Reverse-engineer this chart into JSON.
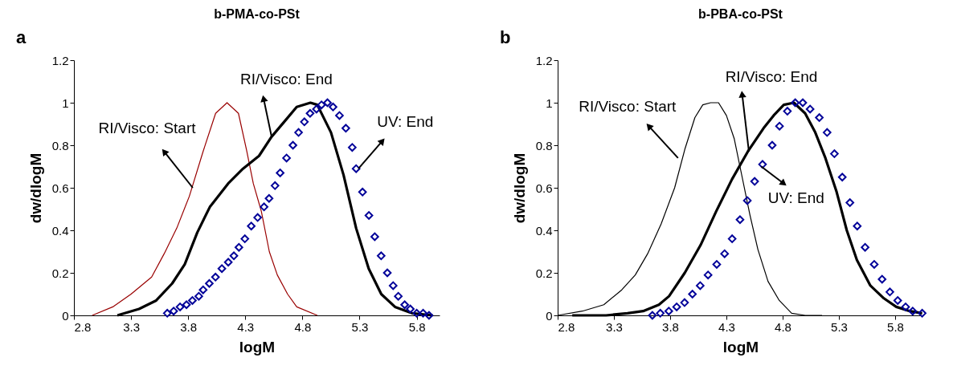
{
  "chart_data": [
    {
      "type": "line",
      "title": "b-PMA-co-PSt",
      "xlabel": "logM",
      "ylabel": "dw/dlogM",
      "xlim": [
        2.8,
        6.0
      ],
      "ylim": [
        0,
        1.2
      ],
      "xticks": [
        2.8,
        3.3,
        3.8,
        4.3,
        4.8,
        5.3,
        5.8
      ],
      "yticks": [
        0,
        0.2,
        0.4,
        0.6,
        0.8,
        1,
        1.2
      ],
      "grid": false,
      "series": [
        {
          "color": "#990000",
          "x": [
            2.96,
            3.14,
            3.3,
            3.48,
            3.59,
            3.7,
            3.81,
            3.93,
            4.04,
            4.14,
            4.24,
            4.31,
            4.37,
            4.44,
            4.51,
            4.58,
            4.67,
            4.75,
            4.93
          ],
          "values": [
            0,
            0.04,
            0.1,
            0.18,
            0.29,
            0.41,
            0.56,
            0.77,
            0.95,
            1.0,
            0.95,
            0.78,
            0.62,
            0.49,
            0.3,
            0.19,
            0.1,
            0.04,
            0
          ]
        },
        {
          "color": "#000000",
          "x": [
            3.18,
            3.37,
            3.52,
            3.66,
            3.77,
            3.88,
            3.99,
            4.15,
            4.28,
            4.42,
            4.53,
            4.64,
            4.75,
            4.87,
            4.93,
            5.05,
            5.16,
            5.27,
            5.38,
            5.49,
            5.61,
            5.76,
            5.94
          ],
          "values": [
            0,
            0.03,
            0.07,
            0.15,
            0.24,
            0.39,
            0.51,
            0.62,
            0.69,
            0.75,
            0.84,
            0.91,
            0.98,
            1.0,
            0.99,
            0.86,
            0.66,
            0.41,
            0.22,
            0.1,
            0.04,
            0.01,
            0
          ]
        },
        {
          "type": "scatter",
          "marker": "diamond",
          "color": "#000099",
          "x": [
            3.617,
            3.673,
            3.729,
            3.785,
            3.837,
            3.893,
            3.931,
            3.985,
            4.039,
            4.095,
            4.151,
            4.2,
            4.244,
            4.296,
            4.352,
            4.408,
            4.464,
            4.508,
            4.56,
            4.605,
            4.661,
            4.717,
            4.766,
            4.817,
            4.867,
            4.923,
            4.967,
            5.019,
            5.068,
            5.124,
            5.18,
            5.236,
            5.27,
            5.326,
            5.382,
            5.433,
            5.489,
            5.543,
            5.594,
            5.639,
            5.695,
            5.744,
            5.8,
            5.856,
            5.908
          ],
          "values": [
            0.01,
            0.02,
            0.04,
            0.05,
            0.07,
            0.09,
            0.12,
            0.15,
            0.18,
            0.22,
            0.25,
            0.28,
            0.32,
            0.36,
            0.42,
            0.46,
            0.51,
            0.55,
            0.61,
            0.67,
            0.74,
            0.8,
            0.86,
            0.91,
            0.95,
            0.97,
            0.99,
            1.0,
            0.98,
            0.94,
            0.88,
            0.79,
            0.69,
            0.58,
            0.47,
            0.37,
            0.28,
            0.2,
            0.14,
            0.09,
            0.05,
            0.03,
            0.01,
            0.01,
            0
          ]
        }
      ],
      "annotations": [
        "a",
        {
          "text": "RI/Visco: Start",
          "x": 3.84,
          "y": 0.6
        },
        {
          "text": "RI/Visco: End",
          "x": 4.53,
          "y": 0.84
        },
        {
          "text": "UV: End",
          "x": 5.29,
          "y": 0.69
        }
      ]
    },
    {
      "type": "line",
      "title": "b-PBA-co-PSt",
      "xlabel": "logM",
      "ylabel": "dw/dlogM",
      "xlim": [
        2.8,
        6.05
      ],
      "ylim": [
        0,
        1.2
      ],
      "xticks": [
        2.8,
        3.3,
        3.8,
        4.3,
        4.8,
        5.3,
        5.8
      ],
      "yticks": [
        0,
        0.2,
        0.4,
        0.6,
        0.8,
        1,
        1.2
      ],
      "grid": false,
      "series": [
        {
          "color": "#000000",
          "x": [
            2.8,
            3.02,
            3.21,
            3.37,
            3.49,
            3.6,
            3.72,
            3.84,
            3.93,
            4.02,
            4.09,
            4.16,
            4.23,
            4.3,
            4.37,
            4.44,
            4.51,
            4.58,
            4.67,
            4.77,
            4.88,
            5.0,
            5.15
          ],
          "values": [
            0,
            0.02,
            0.05,
            0.12,
            0.19,
            0.29,
            0.43,
            0.6,
            0.78,
            0.93,
            0.99,
            1.0,
            1.0,
            0.94,
            0.83,
            0.65,
            0.47,
            0.31,
            0.16,
            0.07,
            0.01,
            0,
            0
          ]
        },
        {
          "color": "#000000",
          "x": [
            2.93,
            3.23,
            3.42,
            3.56,
            3.7,
            3.79,
            3.93,
            4.07,
            4.21,
            4.35,
            4.49,
            4.63,
            4.72,
            4.81,
            4.9,
            5.0,
            5.09,
            5.18,
            5.28,
            5.37,
            5.46,
            5.58,
            5.7,
            5.81,
            5.93,
            6.04
          ],
          "values": [
            0,
            0,
            0.01,
            0.02,
            0.05,
            0.09,
            0.2,
            0.33,
            0.49,
            0.64,
            0.77,
            0.88,
            0.94,
            0.99,
            1.0,
            0.95,
            0.86,
            0.74,
            0.58,
            0.4,
            0.26,
            0.14,
            0.08,
            0.04,
            0.02,
            0.01
          ]
        },
        {
          "type": "scatter",
          "marker": "diamond",
          "color": "#000099",
          "x": [
            3.642,
            3.712,
            3.788,
            3.858,
            3.928,
            3.998,
            4.067,
            4.137,
            4.214,
            4.284,
            4.351,
            4.421,
            4.486,
            4.551,
            4.621,
            4.707,
            4.772,
            4.842,
            4.912,
            4.979,
            5.044,
            5.126,
            5.195,
            5.26,
            5.33,
            5.398,
            5.463,
            5.533,
            5.614,
            5.684,
            5.753,
            5.823,
            5.893,
            5.956,
            6.04
          ],
          "values": [
            0,
            0.01,
            0.02,
            0.04,
            0.06,
            0.1,
            0.14,
            0.19,
            0.24,
            0.29,
            0.36,
            0.45,
            0.54,
            0.63,
            0.71,
            0.8,
            0.89,
            0.96,
            1.0,
            1.0,
            0.97,
            0.93,
            0.86,
            0.76,
            0.65,
            0.53,
            0.42,
            0.32,
            0.24,
            0.17,
            0.11,
            0.07,
            0.04,
            0.02,
            0.01
          ]
        }
      ],
      "annotations": [
        "b",
        {
          "text": "RI/Visco: Start",
          "x": 3.87,
          "y": 0.74
        },
        {
          "text": "RI/Visco: End",
          "x": 4.5,
          "y": 0.77
        },
        {
          "text": "UV: End",
          "x": 4.61,
          "y": 0.7
        }
      ]
    }
  ]
}
